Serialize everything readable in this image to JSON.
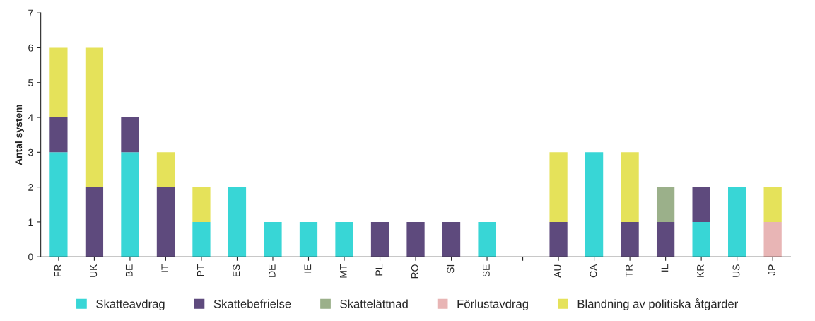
{
  "chart_data": {
    "type": "bar",
    "stacked": true,
    "ylabel": "Antal system",
    "categories": [
      "FR",
      "UK",
      "BE",
      "IT",
      "PT",
      "ES",
      "DE",
      "IE",
      "MT",
      "PL",
      "RO",
      "SI",
      "SE",
      null,
      "AU",
      "CA",
      "TR",
      "IL",
      "KR",
      "US",
      "JP"
    ],
    "series": [
      {
        "name": "Skatteavdrag",
        "color": "#38d6d6",
        "values": [
          3,
          0,
          3,
          0,
          1,
          2,
          1,
          1,
          1,
          0,
          0,
          0,
          1,
          null,
          0,
          3,
          0,
          0,
          1,
          2,
          0
        ]
      },
      {
        "name": "Skattebefrielse",
        "color": "#5e4a7d",
        "values": [
          1,
          2,
          1,
          2,
          0,
          0,
          0,
          0,
          0,
          1,
          1,
          1,
          0,
          null,
          1,
          0,
          1,
          1,
          1,
          0,
          0
        ]
      },
      {
        "name": "Skattelättnad",
        "color": "#9bb08a",
        "values": [
          0,
          0,
          0,
          0,
          0,
          0,
          0,
          0,
          0,
          0,
          0,
          0,
          0,
          null,
          0,
          0,
          0,
          1,
          0,
          0,
          0
        ]
      },
      {
        "name": "Förlustavdrag",
        "color": "#e8b5b5",
        "values": [
          0,
          0,
          0,
          0,
          0,
          0,
          0,
          0,
          0,
          0,
          0,
          0,
          0,
          null,
          0,
          0,
          0,
          0,
          0,
          0,
          1
        ]
      },
      {
        "name": "Blandning av politiska åtgärder",
        "color": "#e5e25a",
        "values": [
          2,
          4,
          0,
          1,
          1,
          0,
          0,
          0,
          0,
          0,
          0,
          0,
          0,
          null,
          2,
          0,
          2,
          0,
          0,
          0,
          1
        ]
      }
    ],
    "ylim": [
      0,
      7
    ],
    "yticks": [
      0,
      1,
      2,
      3,
      4,
      5,
      6,
      7
    ],
    "grid": false,
    "legend": "bottom"
  }
}
